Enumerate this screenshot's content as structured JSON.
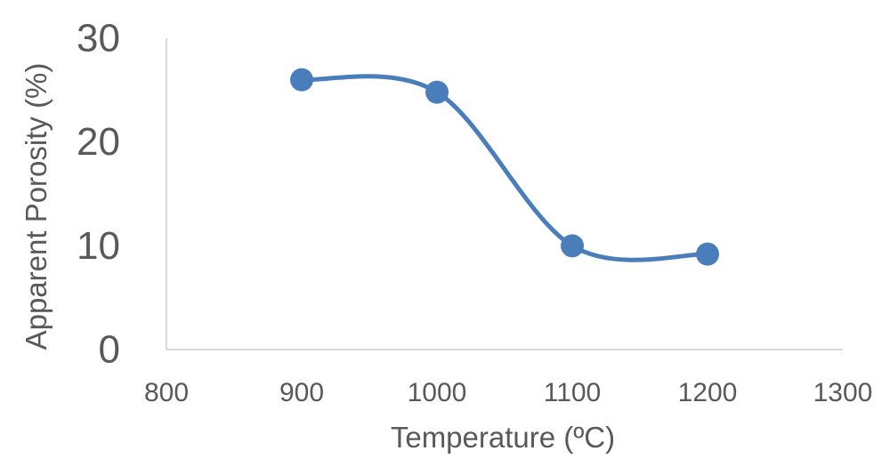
{
  "chart_data": {
    "type": "line",
    "smooth": true,
    "title": "",
    "xlabel": "Temperature (ºC)",
    "ylabel": "Apparent Porosity (%)",
    "xlim": [
      800,
      1300
    ],
    "ylim": [
      0,
      30
    ],
    "x_ticks": [
      "800",
      "900",
      "1000",
      "1100",
      "1200",
      "1300"
    ],
    "y_ticks": [
      "0",
      "10",
      "20",
      "30"
    ],
    "grid": false,
    "legend": "none",
    "color": "#4a7ebb",
    "x": [
      900,
      1000,
      1100,
      1200
    ],
    "y": [
      26.0,
      24.8,
      10.0,
      9.2
    ]
  }
}
